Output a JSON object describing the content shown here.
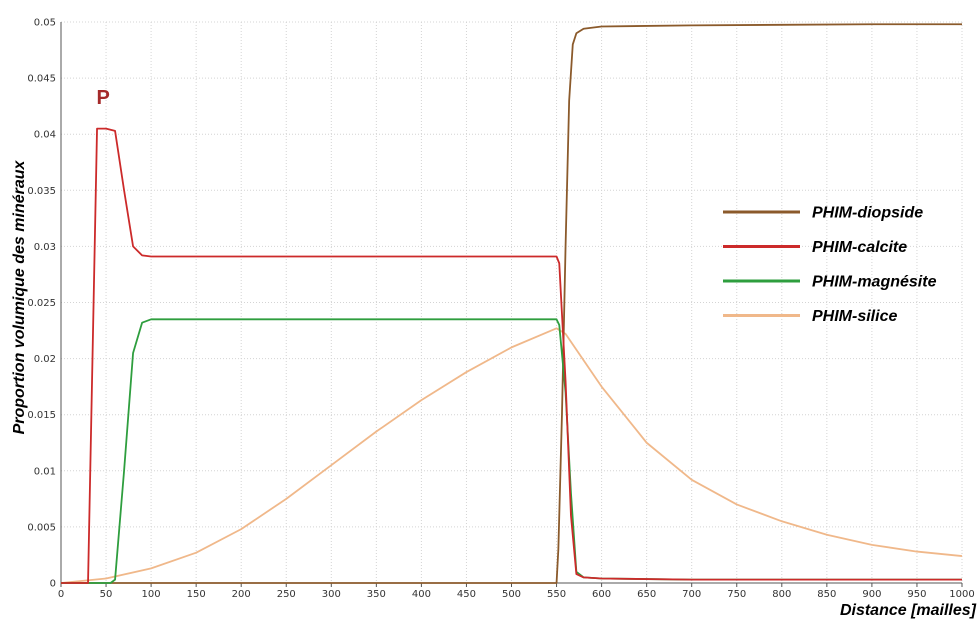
{
  "chart_data": {
    "type": "line",
    "xlabel": "Distance [mailles]",
    "ylabel": "Proportion volumique des minéraux",
    "xlim": [
      0,
      1000
    ],
    "ylim": [
      0,
      0.05
    ],
    "x_ticks": [
      0,
      50,
      100,
      150,
      200,
      250,
      300,
      350,
      400,
      450,
      500,
      550,
      600,
      650,
      700,
      750,
      800,
      850,
      900,
      950,
      1000
    ],
    "y_ticks": [
      0,
      0.005,
      0.01,
      0.015,
      0.02,
      0.025,
      0.03,
      0.035,
      0.04,
      0.045,
      0.05
    ],
    "x_tick_labels": [
      "0",
      "50",
      "100",
      "150",
      "200",
      "250",
      "300",
      "350",
      "400",
      "450",
      "500",
      "550",
      "600",
      "650",
      "700",
      "750",
      "800",
      "850",
      "900",
      "950",
      "1000"
    ],
    "y_tick_labels": [
      "0",
      "0.005",
      "0.01",
      "0.015",
      "0.02",
      "0.025",
      "0.03",
      "0.035",
      "0.04",
      "0.045",
      "0.05"
    ],
    "grid": true,
    "legend_position": "right",
    "annotations": [
      {
        "text": "P",
        "x": 45,
        "y": 0.0425,
        "color": "#a52a2a"
      }
    ],
    "series": [
      {
        "name": "PHIM-diopside",
        "color": "#8b5a2b",
        "points": [
          [
            0,
            0
          ],
          [
            550,
            0
          ],
          [
            552,
            0.003
          ],
          [
            556,
            0.015
          ],
          [
            560,
            0.03
          ],
          [
            564,
            0.043
          ],
          [
            568,
            0.048
          ],
          [
            572,
            0.049
          ],
          [
            580,
            0.0494
          ],
          [
            600,
            0.0496
          ],
          [
            700,
            0.0497
          ],
          [
            800,
            0.04975
          ],
          [
            900,
            0.0498
          ],
          [
            1000,
            0.0498
          ]
        ]
      },
      {
        "name": "PHIM-calcite",
        "color": "#cc2a2a",
        "points": [
          [
            0,
            0
          ],
          [
            30,
            0
          ],
          [
            40,
            0.0405
          ],
          [
            50,
            0.0405
          ],
          [
            60,
            0.0403
          ],
          [
            70,
            0.035
          ],
          [
            80,
            0.03
          ],
          [
            90,
            0.0292
          ],
          [
            100,
            0.0291
          ],
          [
            200,
            0.0291
          ],
          [
            300,
            0.0291
          ],
          [
            400,
            0.0291
          ],
          [
            500,
            0.0291
          ],
          [
            550,
            0.0291
          ],
          [
            553,
            0.0285
          ],
          [
            560,
            0.018
          ],
          [
            566,
            0.006
          ],
          [
            572,
            0.0008
          ],
          [
            580,
            0.0005
          ],
          [
            600,
            0.0004
          ],
          [
            700,
            0.0003
          ],
          [
            800,
            0.0003
          ],
          [
            900,
            0.0003
          ],
          [
            1000,
            0.0003
          ]
        ]
      },
      {
        "name": "PHIM-magnésite",
        "color": "#2e9e3e",
        "points": [
          [
            0,
            0
          ],
          [
            55,
            0
          ],
          [
            60,
            0.0003
          ],
          [
            70,
            0.01
          ],
          [
            80,
            0.0205
          ],
          [
            90,
            0.0232
          ],
          [
            100,
            0.0235
          ],
          [
            200,
            0.0235
          ],
          [
            300,
            0.0235
          ],
          [
            400,
            0.0235
          ],
          [
            500,
            0.0235
          ],
          [
            550,
            0.0235
          ],
          [
            553,
            0.023
          ],
          [
            560,
            0.017
          ],
          [
            566,
            0.008
          ],
          [
            572,
            0.001
          ],
          [
            580,
            0.0005
          ],
          [
            600,
            0.0004
          ],
          [
            700,
            0.0003
          ],
          [
            800,
            0.0003
          ],
          [
            900,
            0.0003
          ],
          [
            1000,
            0.0003
          ]
        ]
      },
      {
        "name": "PHIM-silice",
        "color": "#f0b88a",
        "points": [
          [
            0,
            0
          ],
          [
            50,
            0.0004
          ],
          [
            100,
            0.0013
          ],
          [
            150,
            0.0027
          ],
          [
            200,
            0.0048
          ],
          [
            250,
            0.0075
          ],
          [
            300,
            0.0105
          ],
          [
            350,
            0.0135
          ],
          [
            400,
            0.0163
          ],
          [
            450,
            0.0188
          ],
          [
            500,
            0.021
          ],
          [
            550,
            0.0227
          ],
          [
            560,
            0.0222
          ],
          [
            600,
            0.0175
          ],
          [
            650,
            0.0125
          ],
          [
            700,
            0.0092
          ],
          [
            750,
            0.007
          ],
          [
            800,
            0.0055
          ],
          [
            850,
            0.0043
          ],
          [
            900,
            0.0034
          ],
          [
            950,
            0.0028
          ],
          [
            1000,
            0.0024
          ]
        ]
      }
    ]
  }
}
